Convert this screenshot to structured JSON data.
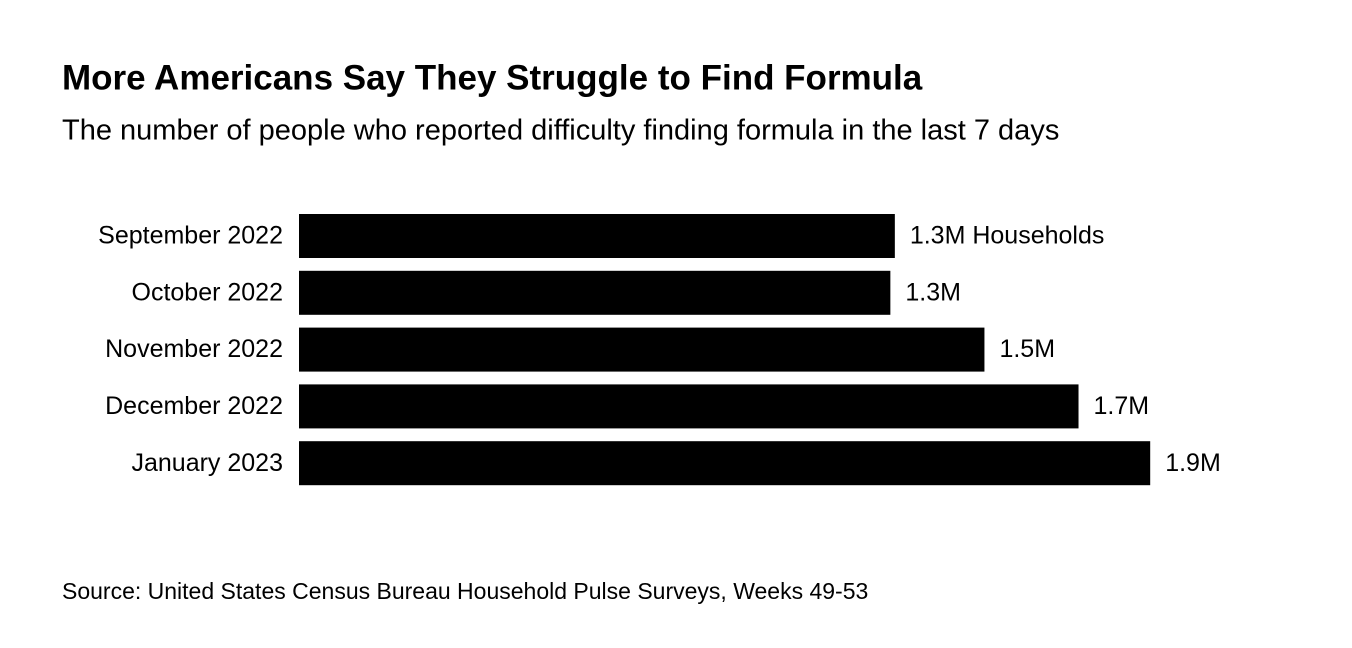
{
  "chart_data": {
    "type": "bar",
    "orientation": "horizontal",
    "title": "More Americans Say They Struggle to Find Formula",
    "subtitle": "The number of people who reported difficulty finding formula in the last 7 days",
    "categories": [
      "September 2022",
      "October 2022",
      "November 2022",
      "December 2022",
      "January 2023"
    ],
    "values": [
      1.33,
      1.32,
      1.53,
      1.74,
      1.9
    ],
    "value_labels": [
      "1.3M Households",
      "1.3M",
      "1.5M",
      "1.7M",
      "1.9M"
    ],
    "color": "#000000",
    "xlim": [
      0,
      2
    ],
    "source": "Source: United States Census Bureau Household Pulse Surveys, Weeks 49-53"
  }
}
